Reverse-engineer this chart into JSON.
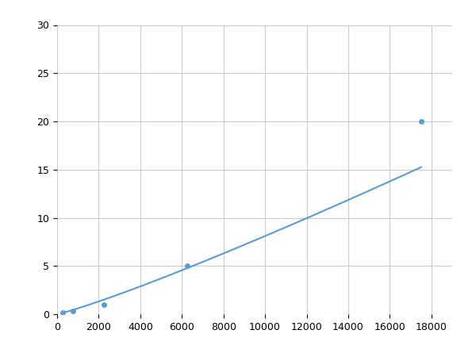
{
  "x_points": [
    250,
    750,
    2250,
    6250,
    17500
  ],
  "y_points": [
    0.2,
    0.3,
    1.0,
    5.0,
    20.0
  ],
  "line_color": "#5b9bd5",
  "marker_color": "#5b9bd5",
  "marker_size": 5,
  "line_width": 1.5,
  "xlim": [
    0,
    19000
  ],
  "ylim": [
    0,
    30
  ],
  "xticks": [
    0,
    2000,
    4000,
    6000,
    8000,
    10000,
    12000,
    14000,
    16000,
    18000
  ],
  "yticks": [
    0,
    5,
    10,
    15,
    20,
    25,
    30
  ],
  "grid_color": "#cccccc",
  "background_color": "#ffffff",
  "figsize": [
    6.0,
    4.5
  ],
  "dpi": 100,
  "power_a": 5.2e-07,
  "power_b": 1.52
}
